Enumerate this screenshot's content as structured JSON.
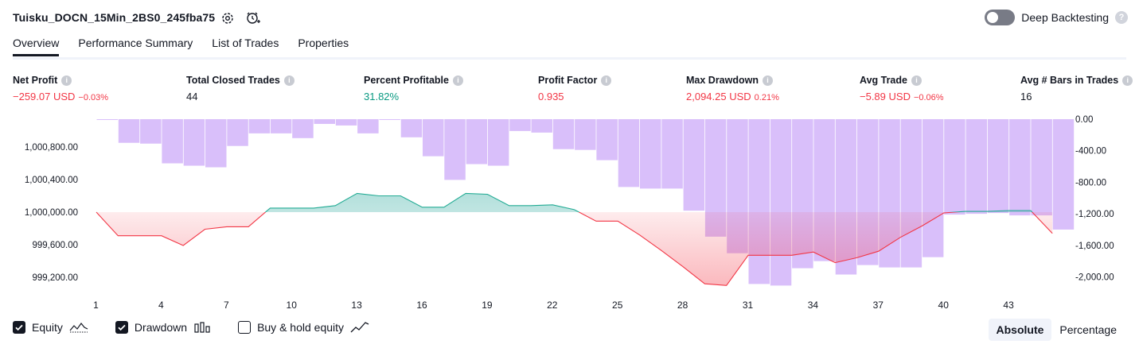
{
  "header": {
    "title": "Tuisku_DOCN_15Min_2BS0_245fba75",
    "deep_backtesting_label": "Deep Backtesting",
    "help_glyph": "?"
  },
  "tabs": [
    {
      "label": "Overview",
      "active": true
    },
    {
      "label": "Performance Summary",
      "active": false
    },
    {
      "label": "List of Trades",
      "active": false
    },
    {
      "label": "Properties",
      "active": false
    }
  ],
  "stats": [
    {
      "label": "Net Profit",
      "value": "−259.07 USD",
      "pct": "−0.03%",
      "tone": "neg"
    },
    {
      "label": "Total Closed Trades",
      "value": "44",
      "pct": "",
      "tone": "plain"
    },
    {
      "label": "Percent Profitable",
      "value": "31.82%",
      "pct": "",
      "tone": "pos"
    },
    {
      "label": "Profit Factor",
      "value": "0.935",
      "pct": "",
      "tone": "neg"
    },
    {
      "label": "Max Drawdown",
      "value": "2,094.25 USD",
      "pct": "0.21%",
      "tone": "neg"
    },
    {
      "label": "Avg Trade",
      "value": "−5.89 USD",
      "pct": "−0.06%",
      "tone": "neg"
    },
    {
      "label": "Avg # Bars in Trades",
      "value": "16",
      "pct": "",
      "tone": "plain"
    }
  ],
  "info_glyph": "i",
  "chart_data": {
    "type": "line",
    "x": [
      1,
      2,
      3,
      4,
      5,
      6,
      7,
      8,
      9,
      10,
      11,
      12,
      13,
      14,
      15,
      16,
      17,
      18,
      19,
      20,
      21,
      22,
      23,
      24,
      25,
      26,
      27,
      28,
      29,
      30,
      31,
      32,
      33,
      34,
      35,
      36,
      37,
      38,
      39,
      40,
      41,
      42,
      43,
      44,
      45
    ],
    "x_ticks": [
      1,
      4,
      7,
      10,
      13,
      16,
      19,
      22,
      25,
      28,
      31,
      34,
      37,
      40,
      43
    ],
    "series": [
      {
        "kind": "equity_line",
        "axis": "left",
        "values": [
          1000000,
          999710,
          999710,
          999710,
          999590,
          999790,
          999820,
          999820,
          1000050,
          1000050,
          1000050,
          1000080,
          1000230,
          1000200,
          1000200,
          1000060,
          1000060,
          1000230,
          1000220,
          1000080,
          1000080,
          1000090,
          1000030,
          999890,
          999890,
          999720,
          999530,
          999330,
          999120,
          999100,
          999470,
          999470,
          999470,
          999510,
          999380,
          999440,
          999520,
          999690,
          999830,
          999990,
          1000010,
          1000010,
          1000020,
          1000020,
          999740
        ]
      },
      {
        "kind": "drawdown_bars",
        "axis": "right",
        "values": [
          -10,
          -300,
          -310,
          -560,
          -590,
          -610,
          -340,
          -180,
          -180,
          -240,
          -60,
          -80,
          -180,
          0,
          -230,
          -470,
          -770,
          -570,
          -590,
          -150,
          -170,
          -380,
          -390,
          -520,
          -860,
          -880,
          -880,
          -1160,
          -1490,
          -1700,
          -2090,
          -2110,
          -1890,
          -1800,
          -1970,
          -1850,
          -1880,
          -1880,
          -1750,
          -1210,
          -1200,
          -1190,
          -1220,
          -1220,
          -1400
        ]
      }
    ],
    "left_axis_ticks": [
      "1,000,800.00",
      "1,000,400.00",
      "1,000,000.00",
      "999,600.00",
      "999,200.00"
    ],
    "left_axis_values": [
      1000800,
      1000400,
      1000000,
      999600,
      999200
    ],
    "right_axis_ticks": [
      "0.00",
      "-400.00",
      "-800.00",
      "-1,200.00",
      "-1,600.00",
      "-2,000.00"
    ],
    "right_axis_values": [
      0,
      -400,
      -800,
      -1200,
      -1600,
      -2000
    ],
    "baseline": 1000000,
    "colors": {
      "equity_up_line": "#22ab94",
      "equity_down_line": "#f23645",
      "equity_up_fill": "#26a69a",
      "equity_down_fill": "#f23645",
      "drawdown_bar": "#c59cf7",
      "drawdown_line": "#7e57c2"
    }
  },
  "legend": {
    "items": [
      {
        "label": "Equity",
        "checked": true,
        "icon": "equity-line-icon"
      },
      {
        "label": "Drawdown",
        "checked": true,
        "icon": "bar-chart-icon"
      },
      {
        "label": "Buy & hold equity",
        "checked": false,
        "icon": "trend-line-icon"
      }
    ]
  },
  "mode": {
    "options": [
      "Absolute",
      "Percentage"
    ],
    "selected": "Absolute"
  }
}
